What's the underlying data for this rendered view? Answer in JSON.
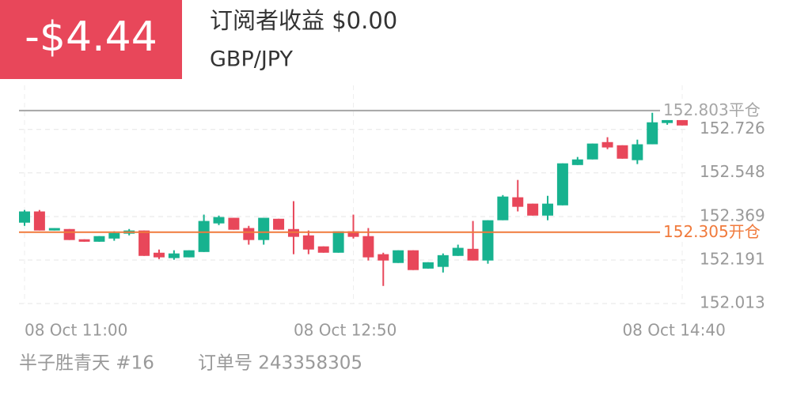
{
  "header": {
    "pnl": "-$4.44",
    "subscriber_label": "订阅者收益 $0.00",
    "symbol": "GBP/JPY"
  },
  "chart_data": {
    "type": "candlestick",
    "categories": [
      "08 Oct 11:00",
      null,
      null,
      null,
      null,
      null,
      null,
      null,
      null,
      null,
      null,
      null,
      null,
      null,
      null,
      null,
      null,
      null,
      "08 Oct 12:50",
      null,
      null,
      null,
      null,
      null,
      null,
      null,
      null,
      null,
      null,
      null,
      null,
      null,
      null,
      null,
      null,
      null,
      null,
      null,
      null,
      null,
      "08 Oct 14:40",
      null,
      null,
      null,
      null
    ],
    "open": [
      152.344,
      152.39,
      152.312,
      152.318,
      152.276,
      152.266,
      152.279,
      152.299,
      152.312,
      152.221,
      152.199,
      152.202,
      152.224,
      152.341,
      152.364,
      152.322,
      152.273,
      152.36,
      152.318,
      152.292,
      152.247,
      152.221,
      152.309,
      152.289,
      152.215,
      152.179,
      152.231,
      152.156,
      152.163,
      152.208,
      152.237,
      152.189,
      152.354,
      152.448,
      152.422,
      152.373,
      152.415,
      152.58,
      152.603,
      152.674,
      152.661,
      152.6,
      152.665,
      152.752,
      152.765
    ],
    "high": [
      152.396,
      152.396,
      152.322,
      152.318,
      152.276,
      152.289,
      152.309,
      152.318,
      152.312,
      152.234,
      152.231,
      152.231,
      152.377,
      152.373,
      152.364,
      152.331,
      152.364,
      152.36,
      152.432,
      152.312,
      152.247,
      152.309,
      152.377,
      152.322,
      152.221,
      152.231,
      152.231,
      152.182,
      152.218,
      152.254,
      152.351,
      152.354,
      152.457,
      152.519,
      152.422,
      152.454,
      152.587,
      152.613,
      152.668,
      152.694,
      152.661,
      152.684,
      152.794,
      152.771,
      152.765
    ],
    "low": [
      152.331,
      152.312,
      152.312,
      152.273,
      152.266,
      152.266,
      152.27,
      152.292,
      152.208,
      152.195,
      152.192,
      152.202,
      152.224,
      152.334,
      152.315,
      152.254,
      152.254,
      152.315,
      152.215,
      152.215,
      152.221,
      152.221,
      152.279,
      152.189,
      152.085,
      152.179,
      152.15,
      152.156,
      152.14,
      152.208,
      152.189,
      152.176,
      152.354,
      152.39,
      152.373,
      152.354,
      152.415,
      152.58,
      152.603,
      152.645,
      152.606,
      152.584,
      152.665,
      152.745,
      152.742
    ],
    "close": [
      152.39,
      152.312,
      152.322,
      152.273,
      152.266,
      152.289,
      152.302,
      152.312,
      152.208,
      152.202,
      152.218,
      152.231,
      152.351,
      152.367,
      152.315,
      152.273,
      152.364,
      152.315,
      152.286,
      152.234,
      152.221,
      152.309,
      152.286,
      152.202,
      152.189,
      152.231,
      152.15,
      152.182,
      152.211,
      152.241,
      152.189,
      152.354,
      152.451,
      152.409,
      152.373,
      152.422,
      152.587,
      152.603,
      152.668,
      152.652,
      152.606,
      152.665,
      152.755,
      152.765,
      152.742
    ],
    "up_color": "#17b28f",
    "down_color": "#e8475a",
    "ylim": [
      152.013,
      152.848
    ],
    "yticks": [
      152.013,
      152.191,
      152.369,
      152.548,
      152.726
    ],
    "grid": true,
    "lines": [
      {
        "name": "平仓",
        "value": 152.803,
        "color": "#a6a6a6"
      },
      {
        "name": "开仓",
        "value": 152.305,
        "color": "#f07a3c"
      }
    ]
  },
  "footer": {
    "trader": "半子胜青天 #16",
    "order": "订单号 243358305"
  }
}
